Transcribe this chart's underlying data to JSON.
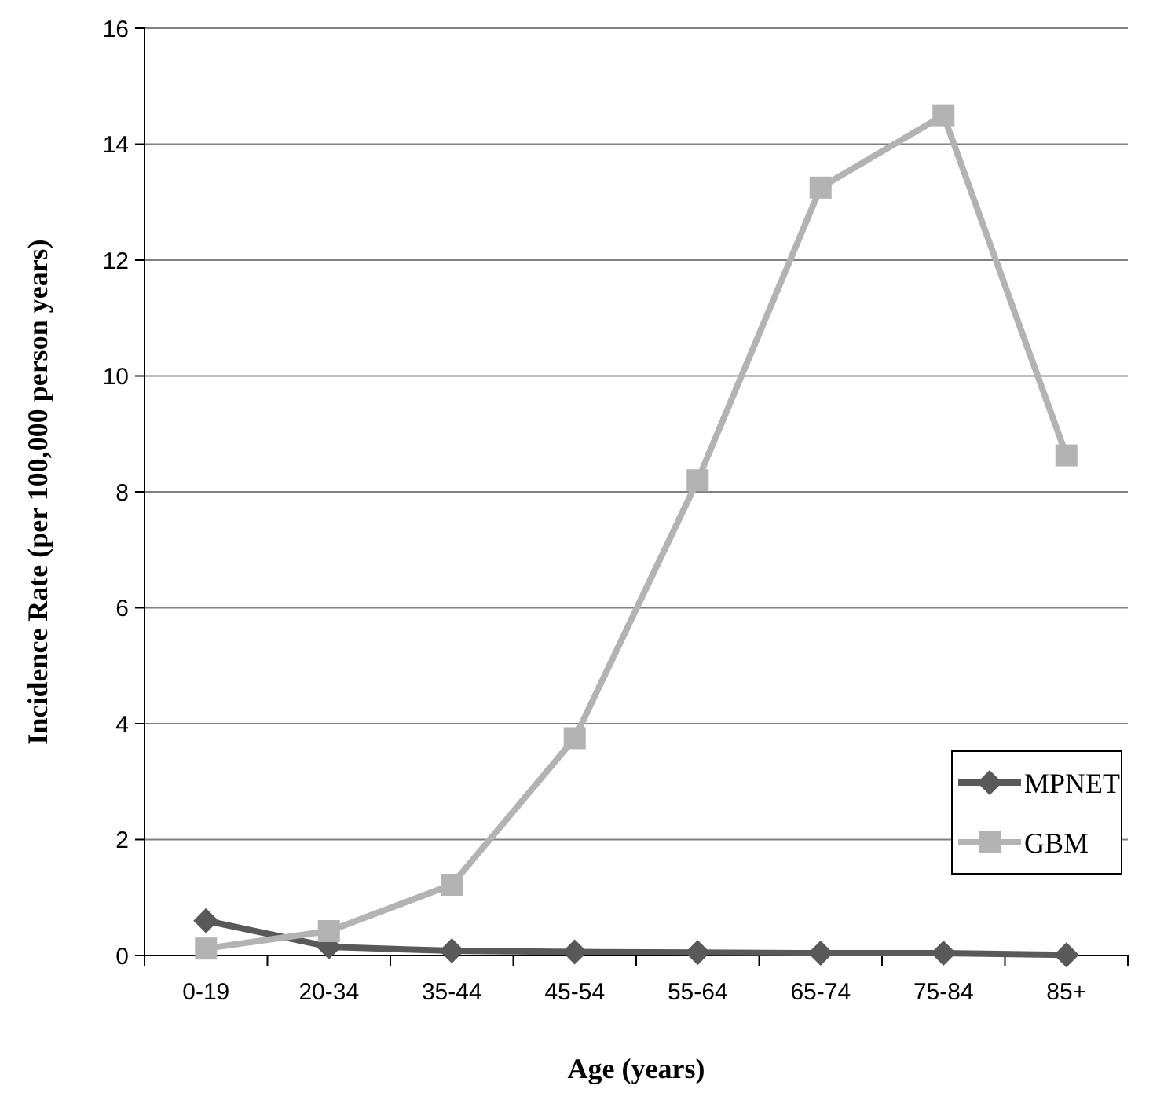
{
  "chart_data": {
    "type": "line",
    "xlabel": "Age (years)",
    "ylabel": "Incidence Rate (per 100,000 person years)",
    "categories": [
      "0-19",
      "20-34",
      "35-44",
      "45-54",
      "55-64",
      "65-74",
      "75-84",
      "85+"
    ],
    "series": [
      {
        "name": "MPNET",
        "color": "#595959",
        "marker": "diamond",
        "values": [
          0.6,
          0.15,
          0.08,
          0.06,
          0.05,
          0.04,
          0.04,
          0.01
        ]
      },
      {
        "name": "GBM",
        "color": "#b3b3b3",
        "marker": "square",
        "values": [
          0.12,
          0.42,
          1.22,
          3.75,
          8.2,
          13.25,
          14.5,
          8.63
        ]
      }
    ],
    "ylim": [
      0,
      16
    ],
    "yticks": [
      0,
      2,
      4,
      6,
      8,
      10,
      12,
      14,
      16
    ],
    "grid": "y",
    "legend": "bottom right",
    "line_style": "solid"
  }
}
